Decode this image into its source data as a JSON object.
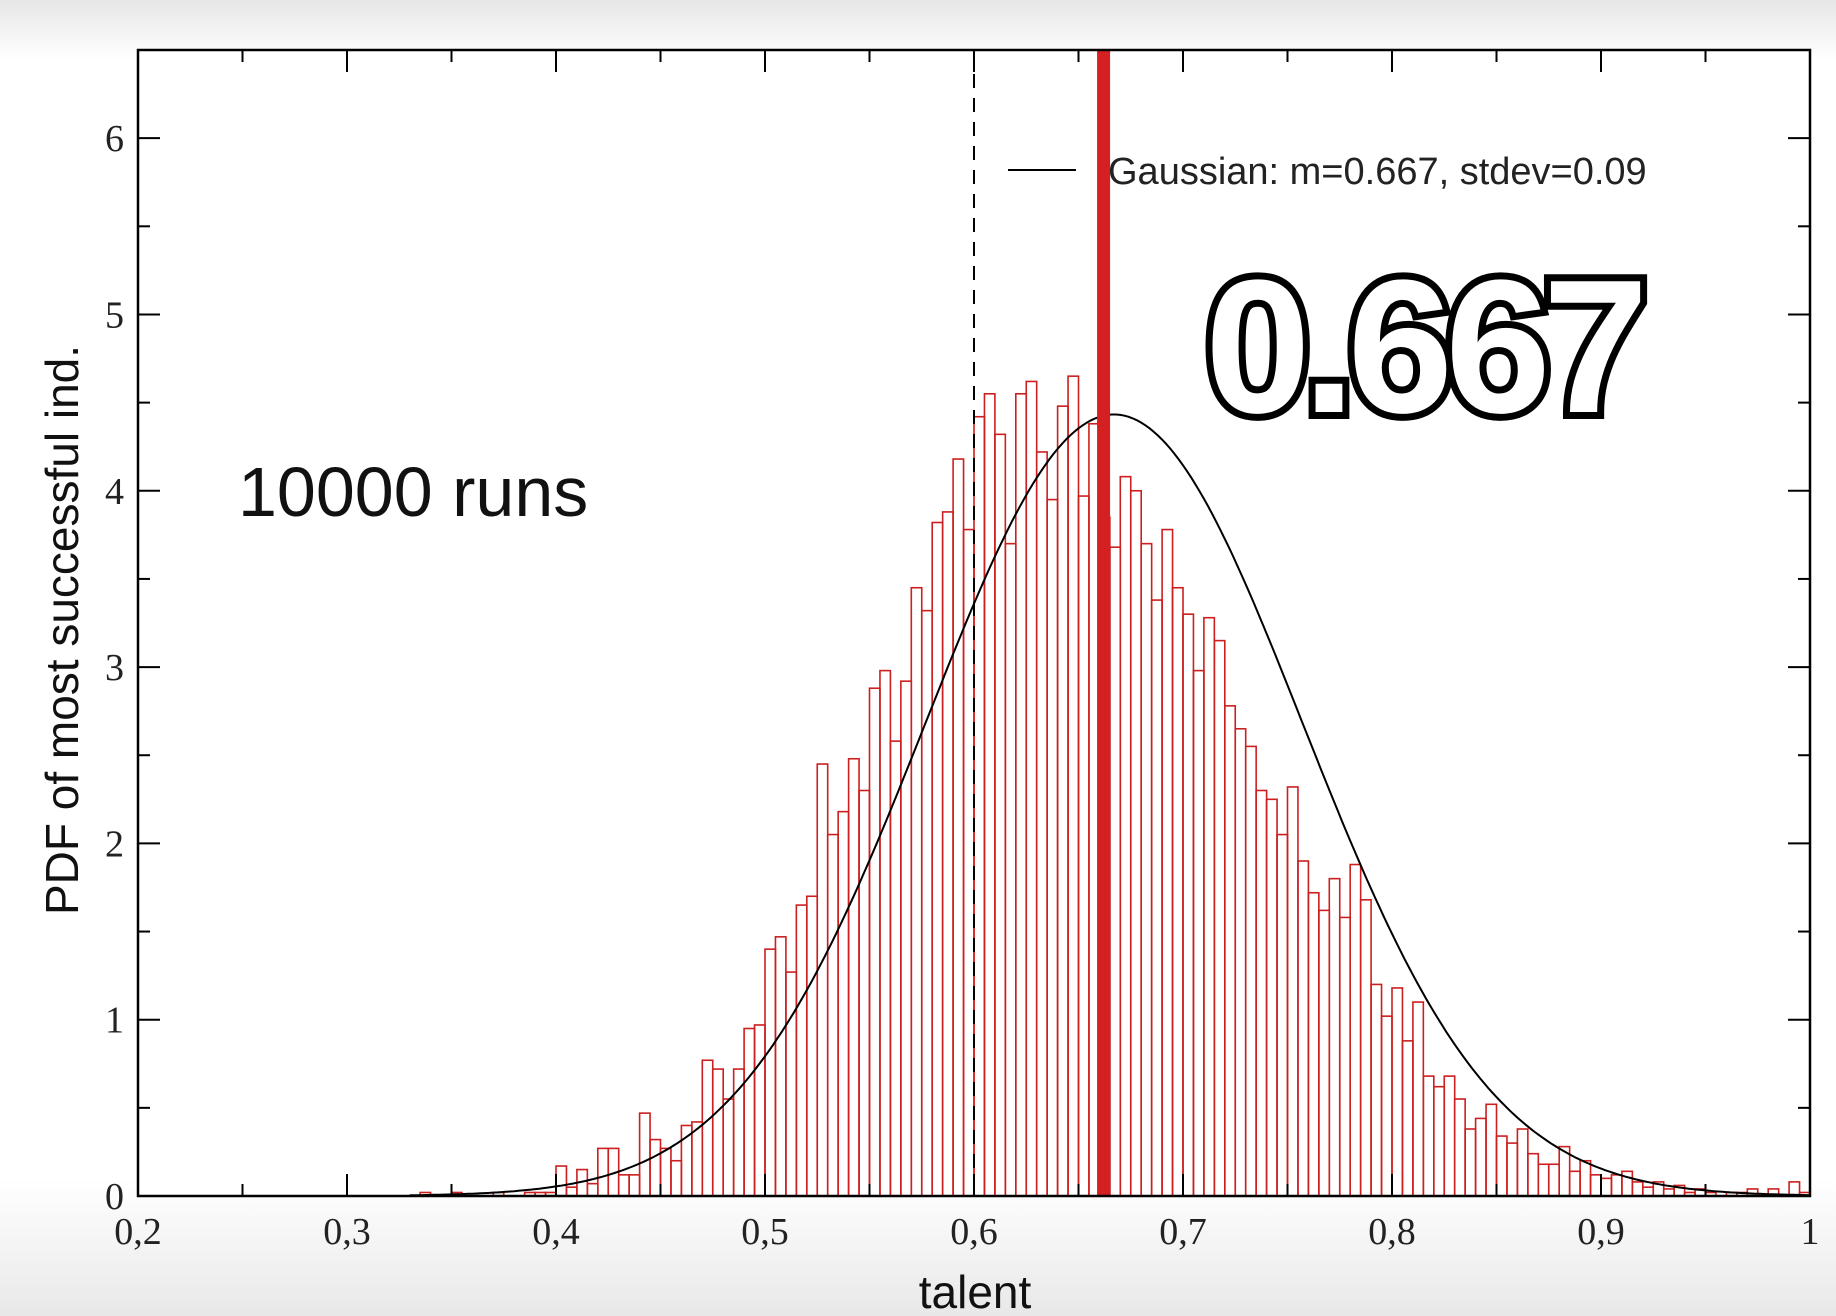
{
  "chart_data": {
    "type": "bar",
    "subtype": "histogram-with-gaussian-fit",
    "xlabel": "talent",
    "ylabel": "PDF of most successful ind.",
    "xlim": [
      0.2,
      1.0
    ],
    "ylim": [
      0,
      6.5
    ],
    "x_ticks": [
      "0,2",
      "0,3",
      "0,4",
      "0,5",
      "0,6",
      "0,7",
      "0,8",
      "0,9",
      "1"
    ],
    "x_tick_values": [
      0.2,
      0.3,
      0.4,
      0.5,
      0.6,
      0.7,
      0.8,
      0.9,
      1.0
    ],
    "y_ticks": [
      "0",
      "1",
      "2",
      "3",
      "4",
      "5",
      "6"
    ],
    "y_tick_values": [
      0,
      1,
      2,
      3,
      4,
      5,
      6
    ],
    "legend": {
      "position": "top-right",
      "entries": [
        "Gaussian: m=0.667, stdev=0.09"
      ]
    },
    "annotations": {
      "runs": "10000 runs",
      "highlight": "0.667"
    },
    "gaussian": {
      "mean": 0.667,
      "stdev": 0.09
    },
    "reference_lines": {
      "dashed_x": 0.6,
      "red_x": 0.662
    },
    "colors": {
      "bars": "#cc1f1f",
      "fit": "#000000",
      "red_line": "#d42020",
      "dashed_line": "#000000"
    },
    "bin_width": 0.005,
    "bins_start": [
      0.335,
      0.34,
      0.345,
      0.35,
      0.355,
      0.36,
      0.365,
      0.37,
      0.375,
      0.38,
      0.385,
      0.39,
      0.395,
      0.4,
      0.405,
      0.41,
      0.415,
      0.42,
      0.425,
      0.43,
      0.435,
      0.44,
      0.445,
      0.45,
      0.455,
      0.46,
      0.465,
      0.47,
      0.475,
      0.48,
      0.485,
      0.49,
      0.495,
      0.5,
      0.505,
      0.51,
      0.515,
      0.52,
      0.525,
      0.53,
      0.535,
      0.54,
      0.545,
      0.55,
      0.555,
      0.56,
      0.565,
      0.57,
      0.575,
      0.58,
      0.585,
      0.59,
      0.595,
      0.6,
      0.605,
      0.61,
      0.615,
      0.62,
      0.625,
      0.63,
      0.635,
      0.64,
      0.645,
      0.65,
      0.655,
      0.66,
      0.665,
      0.67,
      0.675,
      0.68,
      0.685,
      0.69,
      0.695,
      0.7,
      0.705,
      0.71,
      0.715,
      0.72,
      0.725,
      0.73,
      0.735,
      0.74,
      0.745,
      0.75,
      0.755,
      0.76,
      0.765,
      0.77,
      0.775,
      0.78,
      0.785,
      0.79,
      0.795,
      0.8,
      0.805,
      0.81,
      0.815,
      0.82,
      0.825,
      0.83,
      0.835,
      0.84,
      0.845,
      0.85,
      0.855,
      0.86,
      0.865,
      0.87,
      0.875,
      0.88,
      0.885,
      0.89,
      0.895,
      0.9,
      0.905,
      0.91,
      0.915,
      0.92,
      0.925,
      0.93,
      0.935,
      0.94,
      0.945,
      0.95,
      0.955,
      0.96,
      0.965,
      0.97,
      0.975,
      0.98,
      0.985,
      0.99,
      0.995
    ],
    "values": [
      0.02,
      0.0,
      0.0,
      0.02,
      0.0,
      0.0,
      0.0,
      0.02,
      0.0,
      0.0,
      0.02,
      0.02,
      0.02,
      0.17,
      0.05,
      0.15,
      0.07,
      0.27,
      0.27,
      0.12,
      0.12,
      0.47,
      0.32,
      0.27,
      0.2,
      0.4,
      0.42,
      0.77,
      0.72,
      0.55,
      0.72,
      0.95,
      0.97,
      1.4,
      1.47,
      1.27,
      1.65,
      1.7,
      2.45,
      2.05,
      2.18,
      2.48,
      2.3,
      2.88,
      2.98,
      2.58,
      2.92,
      3.45,
      3.32,
      3.82,
      3.88,
      4.18,
      3.78,
      4.42,
      4.55,
      4.32,
      3.7,
      4.55,
      4.62,
      4.22,
      3.95,
      4.48,
      4.65,
      3.97,
      4.38,
      3.85,
      3.68,
      4.08,
      4.0,
      3.7,
      3.38,
      3.78,
      3.45,
      3.3,
      2.98,
      3.28,
      3.15,
      2.78,
      2.65,
      2.55,
      2.3,
      2.25,
      2.05,
      2.32,
      1.9,
      1.72,
      1.62,
      1.8,
      1.58,
      1.88,
      1.68,
      1.2,
      1.02,
      1.18,
      0.88,
      1.1,
      0.68,
      0.62,
      0.68,
      0.55,
      0.38,
      0.44,
      0.52,
      0.34,
      0.3,
      0.38,
      0.24,
      0.18,
      0.18,
      0.28,
      0.14,
      0.2,
      0.12,
      0.1,
      0.12,
      0.14,
      0.08,
      0.05,
      0.08,
      0.04,
      0.06,
      0.02,
      0.04,
      0.02,
      0.0,
      0.02,
      0.02,
      0.04,
      0.0,
      0.04,
      0.0,
      0.08,
      0.02
    ]
  }
}
